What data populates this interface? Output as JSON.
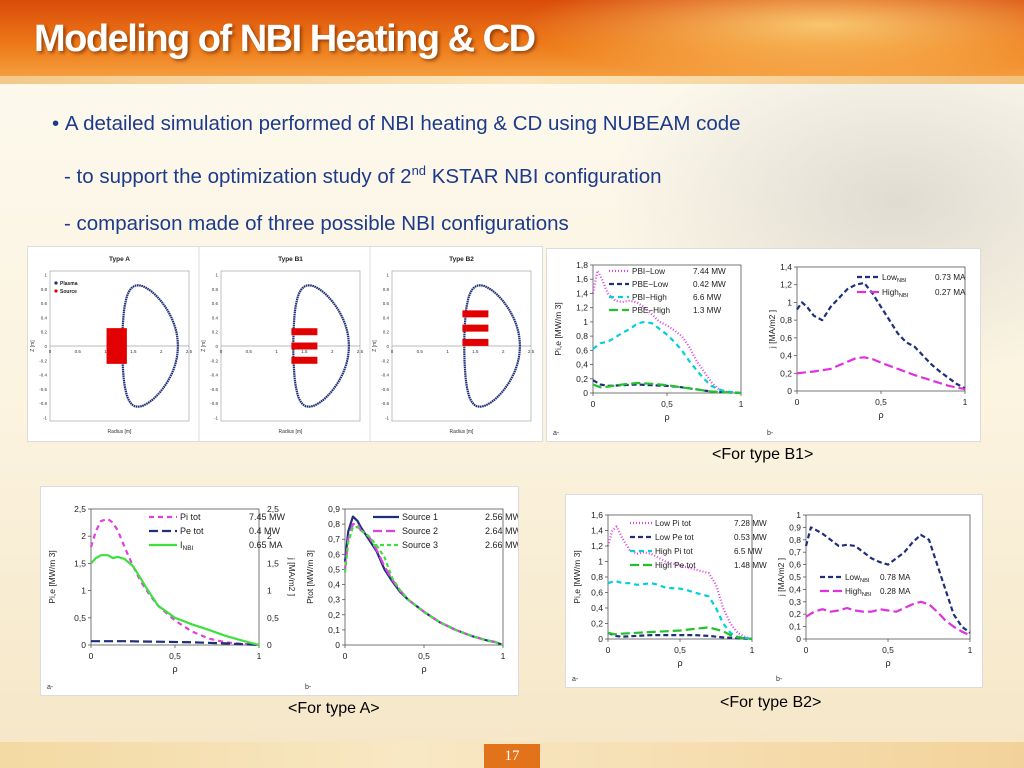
{
  "slide": {
    "title": "Modeling of NBI Heating & CD",
    "bullet_main": "A detailed simulation performed of NBI heating & CD using NUBEAM code",
    "sub1_pre": "- to support the optimization study of 2",
    "sub1_sup": "nd",
    "sub1_post": " KSTAR NBI configuration",
    "sub2": "- comparison made of three possible NBI configurations",
    "page_number": "17"
  },
  "config_figure": {
    "panels": [
      {
        "title": "Type A",
        "type": "A"
      },
      {
        "title": "Type B1",
        "type": "B1"
      },
      {
        "title": "Type B2",
        "type": "B2"
      }
    ],
    "legend": [
      "Plasma",
      "Source"
    ],
    "xlabel": "Radius [m]",
    "ylabel": "Z [m]",
    "yticks": [
      "1",
      "0.8",
      "0.6",
      "0.4",
      "0.2",
      "0",
      "-0.2",
      "-0.4",
      "-0.6",
      "-0.8",
      "-1"
    ],
    "xticks": [
      "0",
      "0.5",
      "1",
      "1.5",
      "2",
      "2.5"
    ],
    "colors": {
      "plasma": "#1f2f7a",
      "source": "#e30000"
    }
  },
  "captions": {
    "b1": "<For type B1>",
    "a": "<For type A>",
    "b2": "<For type B2>"
  },
  "chart_data": [
    {
      "id": "b1-a",
      "type": "line",
      "panel_label": "a-",
      "xlabel": "ρ",
      "ylabel": "Pi,e  [MW/m 3]",
      "xlim": [
        0,
        1
      ],
      "ylim": [
        0,
        1.8
      ],
      "xticks": [
        "0",
        "0,5",
        "1"
      ],
      "yticks": [
        "0",
        "0,2",
        "0,4",
        "0,6",
        "0,8",
        "1",
        "1,2",
        "1,4",
        "1,6",
        "1,8"
      ],
      "series": [
        {
          "name": "PBI−Low",
          "value": "7.44 MW",
          "color": "#e040e0",
          "dash": "1,2",
          "x": [
            0,
            0.03,
            0.06,
            0.1,
            0.15,
            0.2,
            0.25,
            0.3,
            0.35,
            0.4,
            0.45,
            0.5,
            0.55,
            0.6,
            0.65,
            0.7,
            0.75,
            0.8,
            0.85,
            0.9,
            0.95,
            1.0
          ],
          "y": [
            1.4,
            1.72,
            1.6,
            1.4,
            1.3,
            1.28,
            1.3,
            1.27,
            1.2,
            1.1,
            1.0,
            0.95,
            0.88,
            0.8,
            0.65,
            0.45,
            0.3,
            0.15,
            0.05,
            0.02,
            0.01,
            0
          ]
        },
        {
          "name": "PBE−Low",
          "value": "0.42 MW",
          "color": "#1f2f7a",
          "dash": "5,3",
          "x": [
            0,
            0.05,
            0.1,
            0.2,
            0.3,
            0.4,
            0.5,
            0.6,
            0.7,
            0.8,
            0.9,
            1.0
          ],
          "y": [
            0.18,
            0.12,
            0.1,
            0.11,
            0.12,
            0.11,
            0.1,
            0.08,
            0.05,
            0.02,
            0.01,
            0
          ]
        },
        {
          "name": "PBI−High",
          "value": "6.6 MW",
          "color": "#00d0d8",
          "dash": "5,4",
          "x": [
            0,
            0.05,
            0.1,
            0.15,
            0.2,
            0.25,
            0.3,
            0.35,
            0.4,
            0.45,
            0.5,
            0.55,
            0.6,
            0.65,
            0.7,
            0.75,
            0.8,
            0.85,
            0.9,
            0.95,
            1.0
          ],
          "y": [
            0.62,
            0.7,
            0.72,
            0.78,
            0.85,
            0.9,
            0.98,
            1.0,
            0.98,
            0.9,
            0.82,
            0.72,
            0.6,
            0.45,
            0.32,
            0.2,
            0.1,
            0.05,
            0.02,
            0.01,
            0
          ]
        },
        {
          "name": "PBE−High",
          "value": "1.3 MW",
          "color": "#22c22a",
          "dash": "9,4",
          "x": [
            0,
            0.05,
            0.1,
            0.2,
            0.3,
            0.4,
            0.5,
            0.6,
            0.7,
            0.8,
            0.9,
            1.0
          ],
          "y": [
            0.12,
            0.08,
            0.09,
            0.12,
            0.14,
            0.13,
            0.11,
            0.08,
            0.05,
            0.02,
            0.01,
            0
          ]
        }
      ]
    },
    {
      "id": "b1-b",
      "type": "line",
      "panel_label": "b-",
      "xlabel": "ρ",
      "ylabel": "j  [MA/m2 ]",
      "xlim": [
        0,
        1
      ],
      "ylim": [
        0,
        1.4
      ],
      "xticks": [
        "0",
        "0,5",
        "1"
      ],
      "yticks": [
        "0",
        "0,2",
        "0,4",
        "0,6",
        "0,8",
        "1",
        "1,2",
        "1,4"
      ],
      "series": [
        {
          "name": "Low",
          "sub": "NBI",
          "value": "0.73 MA",
          "color": "#1f2f7a",
          "dash": "5,3",
          "x": [
            0,
            0.03,
            0.06,
            0.1,
            0.15,
            0.2,
            0.25,
            0.3,
            0.35,
            0.4,
            0.45,
            0.5,
            0.55,
            0.6,
            0.65,
            0.7,
            0.75,
            0.8,
            0.85,
            0.9,
            0.95,
            1.0
          ],
          "y": [
            0.92,
            1.0,
            0.95,
            0.85,
            0.8,
            0.95,
            1.05,
            1.15,
            1.2,
            1.22,
            1.1,
            0.95,
            0.8,
            0.65,
            0.55,
            0.5,
            0.4,
            0.3,
            0.22,
            0.15,
            0.08,
            0.03
          ]
        },
        {
          "name": "High",
          "sub": "NBI",
          "value": "0.27 MA",
          "color": "#e030e0",
          "dash": "9,4",
          "x": [
            0,
            0.1,
            0.2,
            0.3,
            0.35,
            0.4,
            0.45,
            0.5,
            0.6,
            0.7,
            0.8,
            0.9,
            1.0
          ],
          "y": [
            0.2,
            0.22,
            0.25,
            0.33,
            0.37,
            0.38,
            0.36,
            0.32,
            0.25,
            0.18,
            0.12,
            0.06,
            0.02
          ]
        }
      ]
    },
    {
      "id": "a-a",
      "type": "line",
      "panel_label": "a-",
      "xlabel": "ρ",
      "ylabel": "Pi,e  [MW/m 3]",
      "y2label": "j  [MA/m2 ]",
      "xlim": [
        0,
        1
      ],
      "ylim": [
        0,
        2.5
      ],
      "y2lim": [
        0,
        2.5
      ],
      "xticks": [
        "0",
        "0,5",
        "1"
      ],
      "yticks": [
        "0",
        "0,5",
        "1",
        "1,5",
        "2",
        "2,5"
      ],
      "y2ticks": [
        "0",
        "0,5",
        "1",
        "1,5",
        "2",
        "2,5"
      ],
      "series": [
        {
          "name": "Pi tot",
          "value": "7.45 MW",
          "color": "#e040e0",
          "dash": "5,4",
          "x": [
            0,
            0.03,
            0.06,
            0.1,
            0.13,
            0.16,
            0.2,
            0.25,
            0.3,
            0.35,
            0.4,
            0.5,
            0.6,
            0.7,
            0.8,
            0.9,
            1.0
          ],
          "y": [
            1.8,
            2.1,
            2.28,
            2.32,
            2.25,
            2.1,
            1.8,
            1.45,
            1.15,
            0.92,
            0.72,
            0.45,
            0.25,
            0.12,
            0.05,
            0.02,
            0
          ]
        },
        {
          "name": "Pe tot",
          "value": "0.4 MW",
          "color": "#1f2f7a",
          "dash": "9,4",
          "x": [
            0,
            0.2,
            0.4,
            0.6,
            0.8,
            1.0
          ],
          "y": [
            0.07,
            0.07,
            0.06,
            0.05,
            0.03,
            0
          ]
        },
        {
          "name": "I",
          "sub": "NBI",
          "value": "0.65 MA",
          "color": "#3ee03e",
          "dash": "",
          "x": [
            0,
            0.03,
            0.06,
            0.1,
            0.13,
            0.16,
            0.2,
            0.25,
            0.3,
            0.35,
            0.4,
            0.5,
            0.6,
            0.7,
            0.8,
            0.9,
            1.0
          ],
          "y": [
            1.5,
            1.6,
            1.65,
            1.65,
            1.6,
            1.62,
            1.58,
            1.45,
            1.2,
            0.95,
            0.72,
            0.5,
            0.38,
            0.28,
            0.17,
            0.08,
            0
          ]
        }
      ]
    },
    {
      "id": "a-b",
      "type": "line",
      "panel_label": "b-",
      "xlabel": "ρ",
      "ylabel": "Ptot  [MW/m 3]",
      "xlim": [
        0,
        1
      ],
      "ylim": [
        0,
        0.9
      ],
      "xticks": [
        "0",
        "0,5",
        "1"
      ],
      "yticks": [
        "0",
        "0,1",
        "0,2",
        "0,3",
        "0,4",
        "0,5",
        "0,6",
        "0,7",
        "0,8",
        "0,9"
      ],
      "series": [
        {
          "name": "Source 1",
          "value": "2.56 MW",
          "color": "#1f2f7a",
          "dash": "",
          "x": [
            0,
            0.02,
            0.05,
            0.08,
            0.1,
            0.15,
            0.2,
            0.25,
            0.3,
            0.35,
            0.4,
            0.5,
            0.6,
            0.7,
            0.8,
            0.9,
            0.95,
            1.0
          ],
          "y": [
            0.55,
            0.75,
            0.85,
            0.82,
            0.78,
            0.7,
            0.62,
            0.5,
            0.42,
            0.35,
            0.3,
            0.22,
            0.15,
            0.1,
            0.06,
            0.03,
            0.02,
            0
          ]
        },
        {
          "name": "Source 2",
          "value": "2.64 MW",
          "color": "#e040e0",
          "dash": "9,4",
          "x": [
            0,
            0.02,
            0.05,
            0.08,
            0.1,
            0.15,
            0.2,
            0.25,
            0.3,
            0.35,
            0.4,
            0.5,
            0.6,
            0.7,
            0.8,
            0.9,
            0.95,
            1.0
          ],
          "y": [
            0.5,
            0.7,
            0.8,
            0.8,
            0.76,
            0.72,
            0.63,
            0.52,
            0.43,
            0.36,
            0.3,
            0.22,
            0.15,
            0.1,
            0.06,
            0.03,
            0.02,
            0
          ]
        },
        {
          "name": "Source 3",
          "value": "2.66 MW",
          "color": "#3ee03e",
          "dash": "4,3",
          "x": [
            0,
            0.02,
            0.05,
            0.08,
            0.1,
            0.15,
            0.2,
            0.25,
            0.3,
            0.35,
            0.4,
            0.5,
            0.6,
            0.7,
            0.8,
            0.9,
            0.95,
            1.0
          ],
          "y": [
            0.48,
            0.68,
            0.78,
            0.78,
            0.76,
            0.72,
            0.66,
            0.58,
            0.44,
            0.36,
            0.3,
            0.22,
            0.15,
            0.1,
            0.06,
            0.03,
            0.02,
            0
          ]
        }
      ]
    },
    {
      "id": "b2-a",
      "type": "line",
      "panel_label": "a-",
      "xlabel": "ρ",
      "ylabel": "Pi,e  [MW/m 3]",
      "xlim": [
        0,
        1
      ],
      "ylim": [
        0,
        1.6
      ],
      "xticks": [
        "0",
        "0,5",
        "1"
      ],
      "yticks": [
        "0",
        "0,2",
        "0,4",
        "0,6",
        "0,8",
        "1",
        "1,2",
        "1,4",
        "1,6"
      ],
      "series": [
        {
          "name": "Low Pi tot",
          "value": "7.28 MW",
          "color": "#e040e0",
          "dash": "1,2",
          "x": [
            0,
            0.03,
            0.06,
            0.1,
            0.15,
            0.2,
            0.25,
            0.3,
            0.35,
            0.4,
            0.5,
            0.6,
            0.7,
            0.75,
            0.8,
            0.85,
            0.9,
            0.95,
            1.0
          ],
          "y": [
            1.2,
            1.4,
            1.45,
            1.3,
            1.15,
            1.1,
            1.12,
            1.1,
            1.05,
            1.0,
            0.95,
            0.9,
            0.85,
            0.7,
            0.4,
            0.2,
            0.08,
            0.03,
            0
          ]
        },
        {
          "name": "Low Pe tot",
          "value": "0.53 MW",
          "color": "#1f2f7a",
          "dash": "5,3",
          "x": [
            0,
            0.05,
            0.1,
            0.2,
            0.3,
            0.4,
            0.5,
            0.6,
            0.7,
            0.8,
            0.9,
            1.0
          ],
          "y": [
            0.08,
            0.04,
            0.03,
            0.04,
            0.05,
            0.05,
            0.05,
            0.05,
            0.04,
            0.02,
            0.01,
            0
          ]
        },
        {
          "name": "High Pi tot",
          "value": "6.5 MW",
          "color": "#00d0d8",
          "dash": "5,4",
          "x": [
            0,
            0.05,
            0.1,
            0.15,
            0.2,
            0.3,
            0.35,
            0.4,
            0.5,
            0.55,
            0.6,
            0.7,
            0.75,
            0.8,
            0.85,
            0.9,
            1.0
          ],
          "y": [
            0.72,
            0.75,
            0.72,
            0.72,
            0.7,
            0.72,
            0.7,
            0.66,
            0.65,
            0.63,
            0.6,
            0.55,
            0.4,
            0.2,
            0.08,
            0.03,
            0
          ]
        },
        {
          "name": "High Pe tot",
          "value": "1.48 MW",
          "color": "#22c22a",
          "dash": "9,4",
          "x": [
            0,
            0.05,
            0.1,
            0.2,
            0.3,
            0.4,
            0.5,
            0.6,
            0.7,
            0.8,
            0.85,
            0.9,
            1.0
          ],
          "y": [
            0.08,
            0.06,
            0.07,
            0.08,
            0.09,
            0.1,
            0.11,
            0.13,
            0.15,
            0.1,
            0.05,
            0.02,
            0
          ]
        }
      ]
    },
    {
      "id": "b2-b",
      "type": "line",
      "panel_label": "b-",
      "xlabel": "ρ",
      "ylabel": "j  [MA/m2 ]",
      "xlim": [
        0,
        1
      ],
      "ylim": [
        0,
        1
      ],
      "xticks": [
        "0",
        "0,5",
        "1"
      ],
      "yticks": [
        "0",
        "0,1",
        "0,2",
        "0,3",
        "0,4",
        "0,5",
        "0,6",
        "0,7",
        "0,8",
        "0,9",
        "1"
      ],
      "series": [
        {
          "name": "Low",
          "sub": "NBI",
          "value": "0.78 MA",
          "color": "#1f2f7a",
          "dash": "5,3",
          "x": [
            0,
            0.03,
            0.06,
            0.1,
            0.15,
            0.2,
            0.25,
            0.3,
            0.35,
            0.4,
            0.45,
            0.5,
            0.55,
            0.6,
            0.65,
            0.7,
            0.75,
            0.8,
            0.85,
            0.9,
            0.95,
            1.0
          ],
          "y": [
            0.75,
            0.9,
            0.88,
            0.85,
            0.8,
            0.75,
            0.76,
            0.75,
            0.7,
            0.65,
            0.62,
            0.6,
            0.65,
            0.7,
            0.78,
            0.84,
            0.8,
            0.6,
            0.4,
            0.2,
            0.1,
            0.05
          ]
        },
        {
          "name": "High",
          "sub": "NBI",
          "value": "0.28 MA",
          "color": "#e030e0",
          "dash": "9,4",
          "x": [
            0,
            0.05,
            0.1,
            0.15,
            0.2,
            0.25,
            0.3,
            0.35,
            0.4,
            0.45,
            0.5,
            0.55,
            0.6,
            0.65,
            0.7,
            0.75,
            0.8,
            0.85,
            0.9,
            0.95,
            1.0
          ],
          "y": [
            0.18,
            0.22,
            0.24,
            0.22,
            0.23,
            0.25,
            0.23,
            0.22,
            0.22,
            0.24,
            0.23,
            0.22,
            0.25,
            0.28,
            0.3,
            0.28,
            0.22,
            0.15,
            0.1,
            0.06,
            0.03
          ]
        }
      ]
    }
  ]
}
